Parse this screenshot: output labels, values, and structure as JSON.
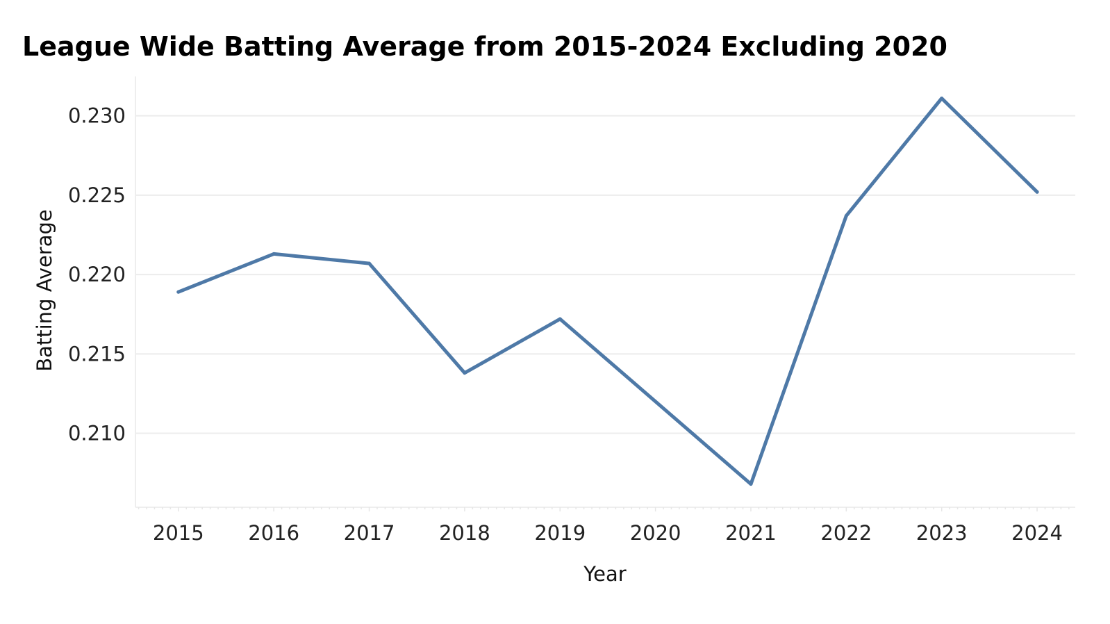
{
  "chart_data": {
    "type": "line",
    "title": "League Wide Batting Average from 2015-2024 Excluding 2020",
    "xlabel": "Year",
    "ylabel": "Batting Average",
    "x": [
      "2015",
      "2016",
      "2017",
      "2018",
      "2019",
      "2020",
      "2021",
      "2022",
      "2023",
      "2024"
    ],
    "x_numeric": [
      2015,
      2016,
      2017,
      2018,
      2019,
      2020,
      2021,
      2022,
      2023,
      2024
    ],
    "series": [
      {
        "x": [
          2015,
          2016,
          2017,
          2018,
          2019,
          2021,
          2022,
          2023,
          2024
        ],
        "values": [
          0.2189,
          0.2213,
          0.2207,
          0.2138,
          0.2172,
          0.2068,
          0.2237,
          0.2311,
          0.2252
        ],
        "color": "#4e79a7"
      }
    ],
    "y_ticks": [
      "0.210",
      "0.215",
      "0.220",
      "0.225",
      "0.230"
    ],
    "y_tick_values": [
      0.21,
      0.215,
      0.22,
      0.225,
      0.23
    ],
    "ylim": [
      0.20534,
      0.23248
    ],
    "xlim": [
      2014.55,
      2024.4
    ],
    "grid": true,
    "legend": "none"
  }
}
